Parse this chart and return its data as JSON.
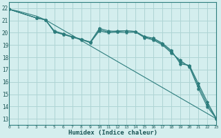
{
  "xlabel": "Humidex (Indice chaleur)",
  "xlim": [
    0,
    23
  ],
  "ylim": [
    12.5,
    22.5
  ],
  "background_color": "#d4eeee",
  "grid_color": "#aed4d4",
  "line_color": "#2d7d7d",
  "series": [
    {
      "x": [
        0,
        1,
        3,
        4,
        23
      ],
      "y": [
        21.9,
        21.75,
        21.35,
        21.05,
        13.0
      ],
      "marker": false
    },
    {
      "x": [
        0,
        3,
        4,
        5,
        6,
        7,
        8,
        9,
        10,
        11,
        12,
        13,
        14,
        15,
        16,
        17,
        18,
        19,
        20,
        21,
        22,
        23
      ],
      "y": [
        21.9,
        21.2,
        21.05,
        20.05,
        19.85,
        19.65,
        19.45,
        19.25,
        20.35,
        20.15,
        20.1,
        20.15,
        20.1,
        19.7,
        19.55,
        19.15,
        18.55,
        17.45,
        17.35,
        15.85,
        14.35,
        13.0
      ],
      "marker": true
    },
    {
      "x": [
        0,
        3,
        4,
        5,
        6,
        7,
        8,
        9,
        10,
        11,
        12,
        13,
        14,
        15,
        16,
        17,
        18,
        19,
        20,
        21,
        22,
        23
      ],
      "y": [
        21.9,
        21.2,
        21.05,
        20.1,
        19.88,
        19.63,
        19.43,
        19.18,
        20.15,
        20.0,
        20.05,
        20.0,
        20.05,
        19.6,
        19.4,
        19.0,
        18.35,
        17.75,
        17.2,
        15.45,
        13.95,
        13.0
      ],
      "marker": true
    },
    {
      "x": [
        0,
        3,
        4,
        5,
        6,
        7,
        8,
        9,
        10,
        11,
        12,
        13,
        14,
        15,
        16,
        17,
        18,
        19,
        20,
        21,
        22,
        23
      ],
      "y": [
        21.9,
        21.2,
        21.05,
        20.15,
        19.92,
        19.68,
        19.48,
        19.22,
        20.25,
        20.05,
        20.15,
        20.15,
        20.1,
        19.65,
        19.48,
        19.08,
        18.45,
        17.6,
        17.3,
        15.65,
        14.15,
        13.0
      ],
      "marker": true
    }
  ],
  "xticks": [
    0,
    1,
    2,
    3,
    4,
    5,
    6,
    7,
    8,
    9,
    10,
    11,
    12,
    13,
    14,
    15,
    16,
    17,
    18,
    19,
    20,
    21,
    22,
    23
  ],
  "yticks": [
    13,
    14,
    15,
    16,
    17,
    18,
    19,
    20,
    21,
    22
  ]
}
